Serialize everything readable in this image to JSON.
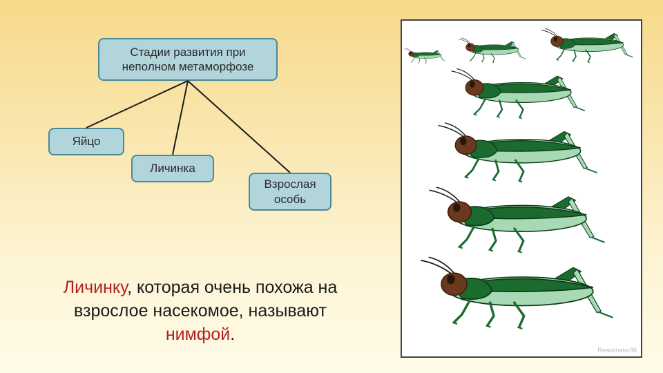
{
  "diagram": {
    "root": {
      "label": "Стадии развития при неполном метаморфозе"
    },
    "children": [
      {
        "label": "Яйцо"
      },
      {
        "label": "Личинка"
      },
      {
        "label": "Взрослая особь"
      }
    ],
    "connector_color": "#1a1a1a",
    "connector_width": 2
  },
  "caption": {
    "term1": "Личинку",
    "middle": ",  которая очень похожа  на взрослое насекомое, называют ",
    "term2": "нимфой",
    "end": "."
  },
  "illustration": {
    "panel_bg": "#ffffff",
    "border": "#444444",
    "grasshoppers": [
      {
        "scale": 0.25,
        "row": "top"
      },
      {
        "scale": 0.4,
        "row": "top"
      },
      {
        "scale": 0.55,
        "row": "top"
      },
      {
        "scale": 0.8,
        "row": "stack"
      },
      {
        "scale": 0.95,
        "row": "stack"
      },
      {
        "scale": 1.05,
        "row": "stack"
      },
      {
        "scale": 1.15,
        "row": "stack"
      }
    ],
    "base_width": 270,
    "base_height": 95,
    "colors": {
      "body_dark": "#1b6b2f",
      "body_light": "#a7d9b4",
      "head": "#6b3a1e",
      "eye": "#2a1608",
      "leg": "#1b6b2f",
      "antenna": "#1a1a1a"
    },
    "watermark": "Reanimator86"
  },
  "palette": {
    "bg_top": "#f7d98a",
    "bg_bottom": "#fefbe8",
    "box_fill": "#b2d4db",
    "box_border": "#4a8a96",
    "text": "#1a1a1a",
    "accent_text": "#b22222"
  }
}
